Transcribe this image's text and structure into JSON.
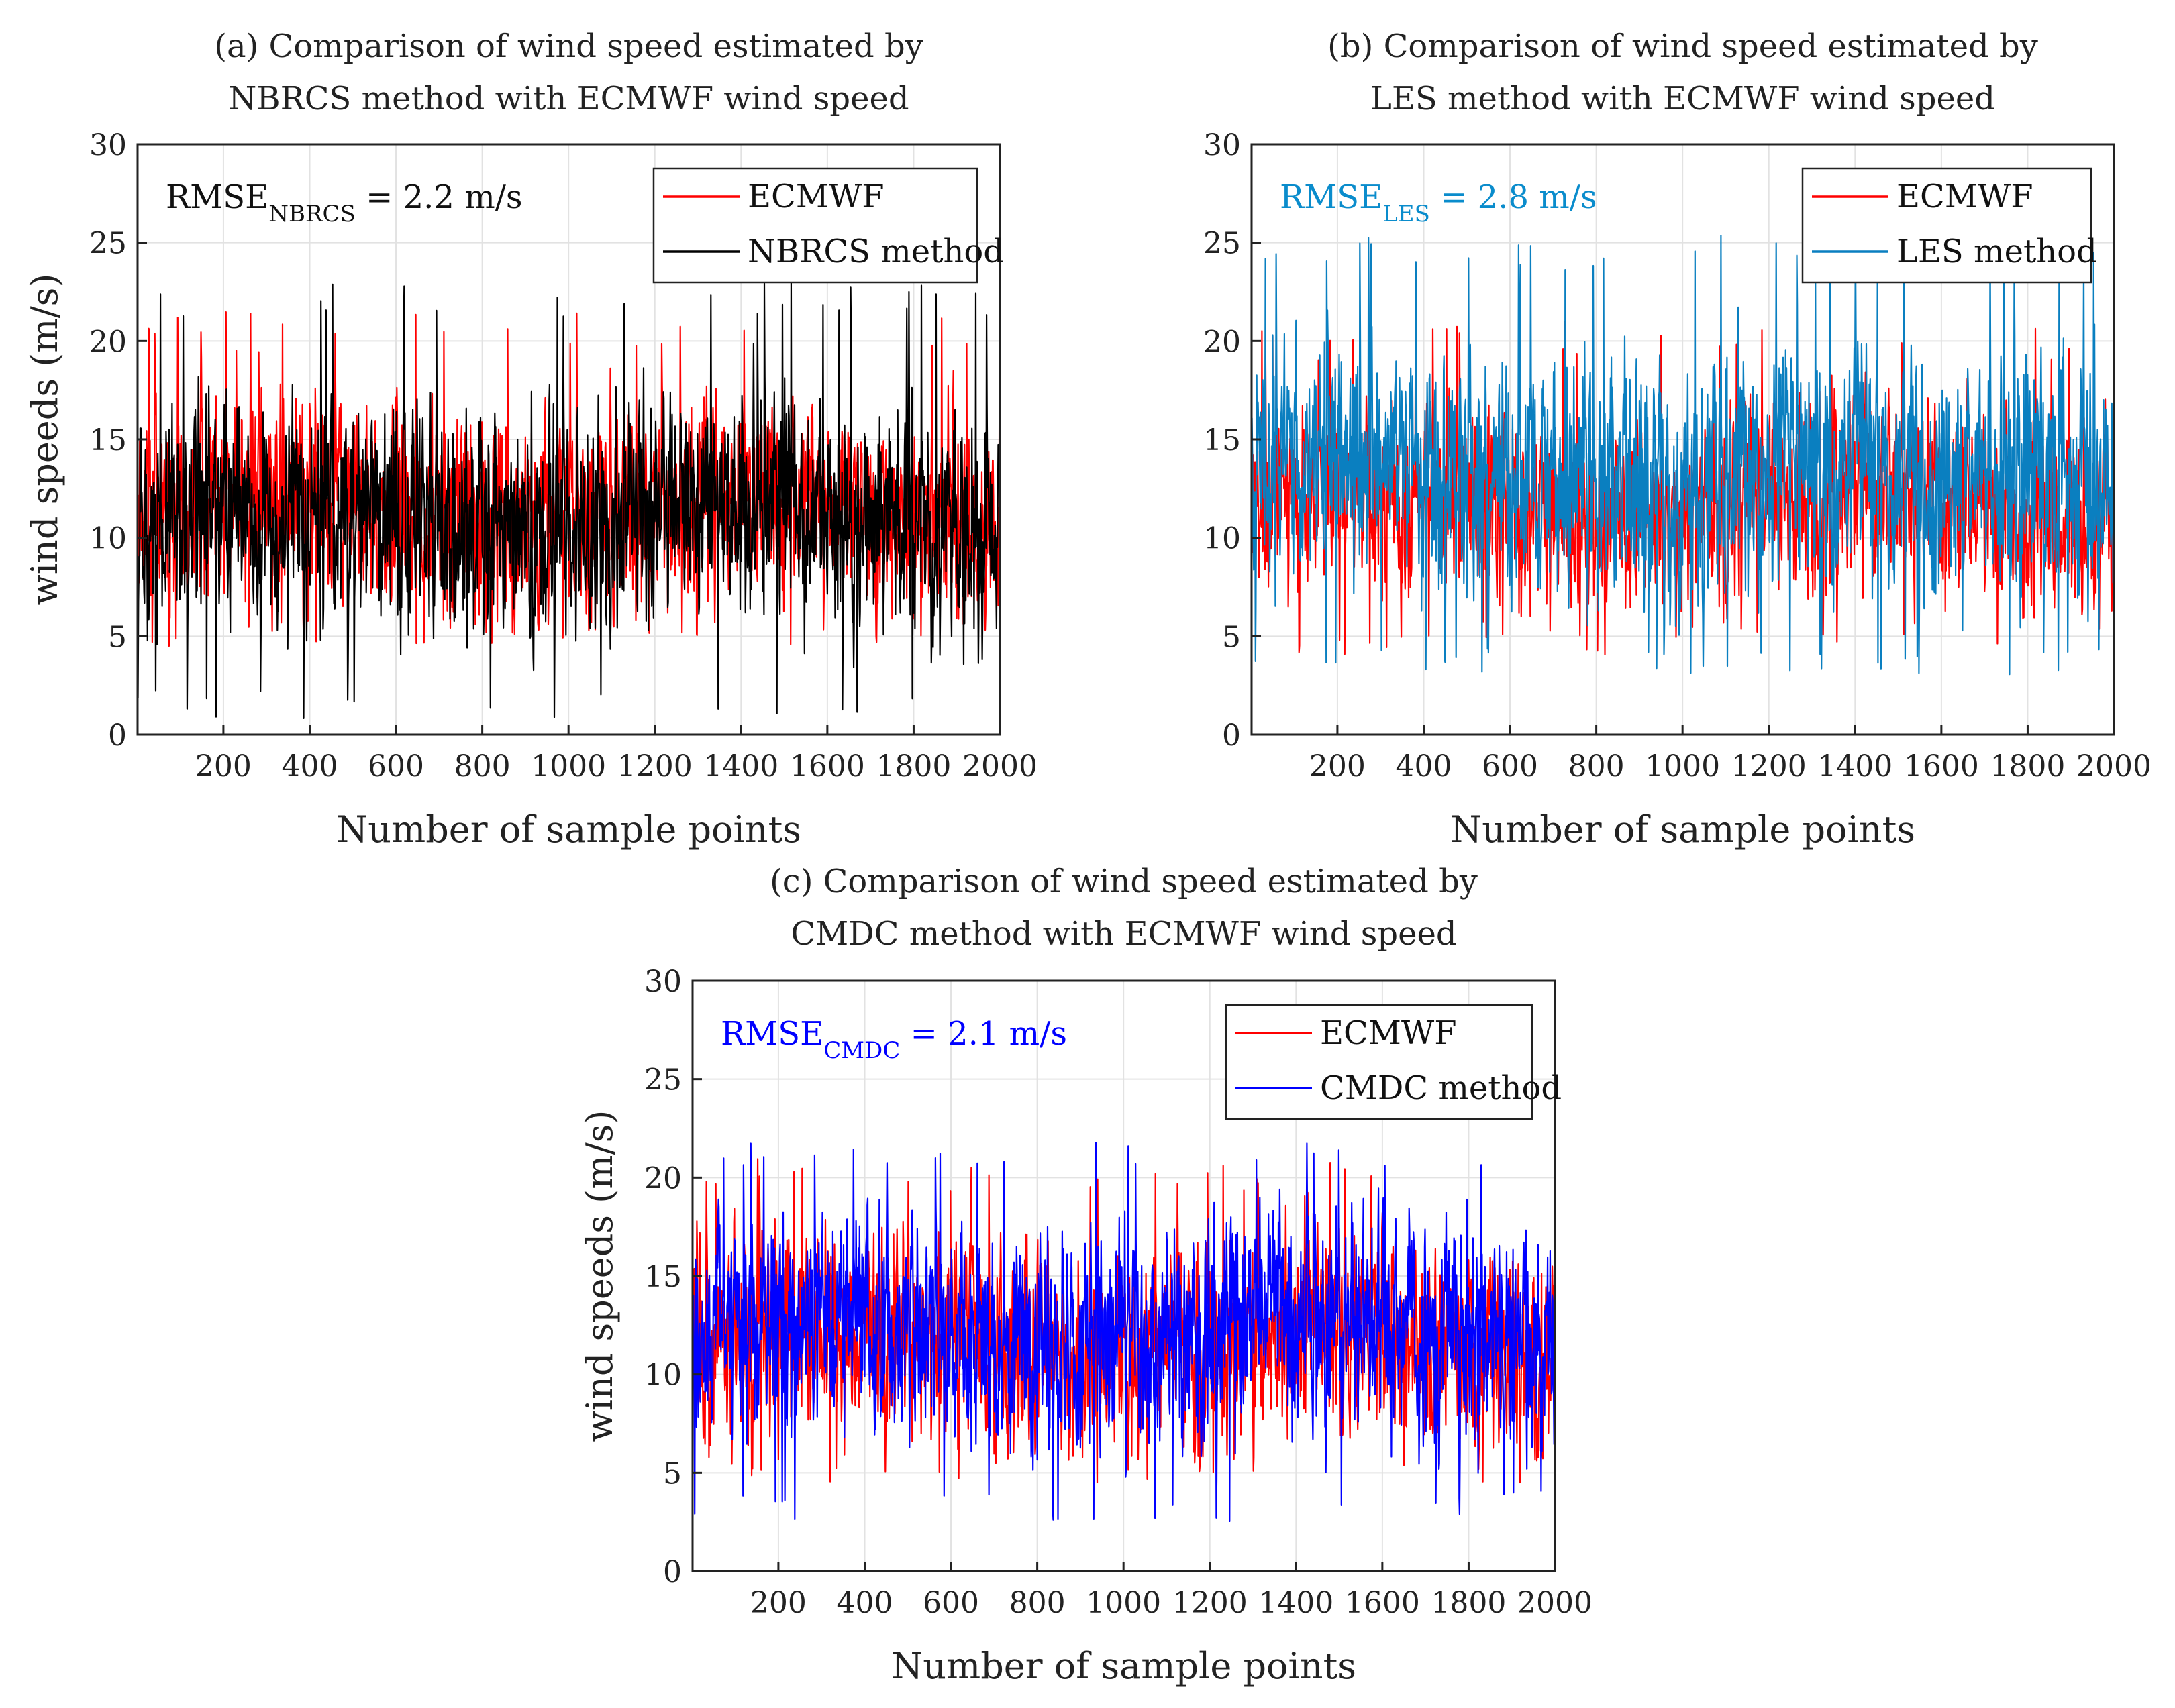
{
  "chart_data": [
    {
      "id": "a",
      "type": "line",
      "title": [
        "(a) Comparison of wind speed estimated by",
        "NBRCS method with ECMWF wind speed"
      ],
      "xlabel": "Number of sample points",
      "ylabel": "wind speeds (m/s)",
      "xlim": [
        1,
        2000
      ],
      "ylim": [
        0,
        30
      ],
      "x_ticks": [
        200,
        400,
        600,
        800,
        1000,
        1200,
        1400,
        1600,
        1800,
        2000
      ],
      "y_ticks": [
        0,
        5,
        10,
        15,
        20,
        25,
        30
      ],
      "grid": true,
      "legend_position": "top-right",
      "annotation": {
        "main": "RMSE",
        "sub": "NBRCS",
        "tail": " = 2.2 m/s",
        "color": "#111111"
      },
      "series": [
        {
          "name": "ECMWF",
          "color": "#ff0000",
          "n_points": 2000,
          "mean": 11.5,
          "min": 4.5,
          "max": 21.5
        },
        {
          "name": "NBRCS method",
          "color": "#000000",
          "n_points": 2000,
          "mean": 11.0,
          "min": 0.8,
          "max": 23.0
        }
      ]
    },
    {
      "id": "b",
      "type": "line",
      "title": [
        "(b) Comparison of wind speed estimated by",
        "LES method with ECMWF wind speed"
      ],
      "xlabel": "Number of sample points",
      "ylabel": "",
      "xlim": [
        1,
        2000
      ],
      "ylim": [
        0,
        30
      ],
      "x_ticks": [
        200,
        400,
        600,
        800,
        1000,
        1200,
        1400,
        1600,
        1800,
        2000
      ],
      "y_ticks": [
        0,
        5,
        10,
        15,
        20,
        25,
        30
      ],
      "grid": true,
      "legend_position": "top-right",
      "annotation": {
        "main": "RMSE",
        "sub": "LES",
        "tail": " = 2.8 m/s",
        "color": "#0a8ccc"
      },
      "series": [
        {
          "name": "ECMWF",
          "color": "#ff0000",
          "n_points": 2000,
          "mean": 11.5,
          "min": 4.0,
          "max": 21.0
        },
        {
          "name": "LES method",
          "color": "#0a7fc0",
          "n_points": 2000,
          "mean": 13.2,
          "min": 3.0,
          "max": 25.5
        }
      ]
    },
    {
      "id": "c",
      "type": "line",
      "title": [
        "(c) Comparison of wind speed estimated by",
        "CMDC method with ECMWF wind speed"
      ],
      "xlabel": "Number of sample points",
      "ylabel": "wind speeds (m/s)",
      "xlim": [
        1,
        2000
      ],
      "ylim": [
        0,
        30
      ],
      "x_ticks": [
        200,
        400,
        600,
        800,
        1000,
        1200,
        1400,
        1600,
        1800,
        2000
      ],
      "y_ticks": [
        0,
        5,
        10,
        15,
        20,
        25,
        30
      ],
      "grid": true,
      "legend_position": "top-right",
      "annotation": {
        "main": "RMSE",
        "sub": "CMDC",
        "tail": " = 2.1 m/s",
        "color": "#0000ff"
      },
      "series": [
        {
          "name": "ECMWF",
          "color": "#ff0000",
          "n_points": 2000,
          "mean": 11.5,
          "min": 4.5,
          "max": 21.0
        },
        {
          "name": "CMDC method",
          "color": "#0000ff",
          "n_points": 2000,
          "mean": 12.0,
          "min": 2.5,
          "max": 22.5
        }
      ]
    }
  ]
}
